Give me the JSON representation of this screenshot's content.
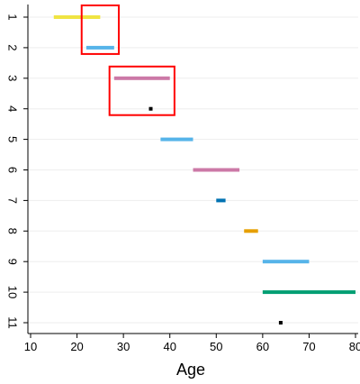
{
  "chart_data": {
    "type": "range-bar",
    "xlabel": "Age",
    "ylabel": "",
    "xlim": [
      10,
      80
    ],
    "xticks": [
      10,
      20,
      30,
      40,
      50,
      60,
      70,
      80
    ],
    "yticks": [
      "1",
      "2",
      "3",
      "4",
      "5",
      "6",
      "7",
      "8",
      "9",
      "10",
      "11"
    ],
    "grid": "horizontal",
    "bars": [
      {
        "row": "1",
        "start": 15,
        "end": 25,
        "color": "#f0e442"
      },
      {
        "row": "2",
        "start": 22,
        "end": 28,
        "color": "#56b4e9"
      },
      {
        "row": "3",
        "start": 28,
        "end": 40,
        "color": "#cc79a7"
      },
      {
        "row": "4",
        "start": 35.5,
        "end": 36,
        "color": "#000000"
      },
      {
        "row": "5",
        "start": 38,
        "end": 45,
        "color": "#56b4e9"
      },
      {
        "row": "6",
        "start": 45,
        "end": 55,
        "color": "#cc79a7"
      },
      {
        "row": "7",
        "start": 50,
        "end": 52,
        "color": "#0072b2"
      },
      {
        "row": "8",
        "start": 56,
        "end": 59,
        "color": "#e69f00"
      },
      {
        "row": "9",
        "start": 60,
        "end": 70,
        "color": "#56b4e9"
      },
      {
        "row": "10",
        "start": 60,
        "end": 80,
        "color": "#009e73"
      },
      {
        "row": "11",
        "start": 63.5,
        "end": 64,
        "color": "#000000"
      }
    ],
    "highlight_boxes": [
      {
        "rows": [
          "1",
          "2"
        ],
        "x_from": 21,
        "x_to": 29,
        "color": "#ff0000"
      },
      {
        "rows": [
          "3",
          "4"
        ],
        "x_from": 27,
        "x_to": 41,
        "color": "#ff0000"
      }
    ]
  }
}
